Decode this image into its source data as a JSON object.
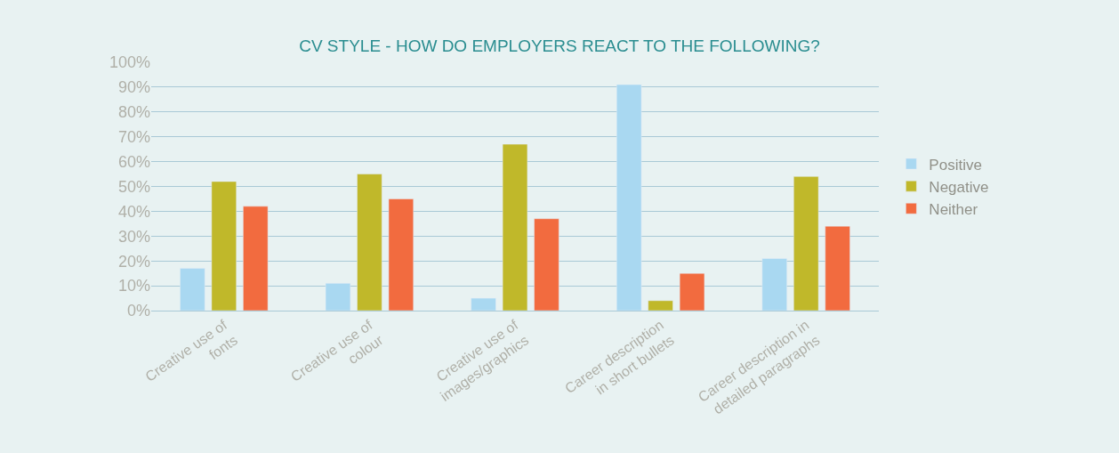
{
  "chart_data": {
    "type": "bar",
    "title": "CV STYLE - HOW DO EMPLOYERS REACT TO THE FOLLOWING?",
    "categories": [
      "Creative use of\nfonts",
      "Creative use of\ncolour",
      "Creative use of\nimages/graphics",
      "Career description\nin short bullets",
      "Career description in\ndetailed paragraphs"
    ],
    "series": [
      {
        "name": "Positive",
        "color": "#a9d8f1",
        "values": [
          17,
          11,
          5,
          91,
          21
        ]
      },
      {
        "name": "Negative",
        "color": "#c0b82a",
        "values": [
          52,
          55,
          67,
          4,
          54
        ]
      },
      {
        "name": "Neither",
        "color": "#f26b3f",
        "values": [
          42,
          45,
          37,
          15,
          34
        ]
      }
    ],
    "ylim": [
      0,
      100
    ],
    "yticks": [
      {
        "value": 0,
        "label": "0%"
      },
      {
        "value": 10,
        "label": "10%"
      },
      {
        "value": 20,
        "label": "20%"
      },
      {
        "value": 30,
        "label": "30%"
      },
      {
        "value": 40,
        "label": "40%"
      },
      {
        "value": 50,
        "label": "50%"
      },
      {
        "value": 60,
        "label": "60%"
      },
      {
        "value": 70,
        "label": "70%"
      },
      {
        "value": 80,
        "label": "80%"
      },
      {
        "value": 90,
        "label": "90%"
      },
      {
        "value": 100,
        "label": "100%"
      }
    ],
    "grid": "y",
    "legend": "right"
  }
}
